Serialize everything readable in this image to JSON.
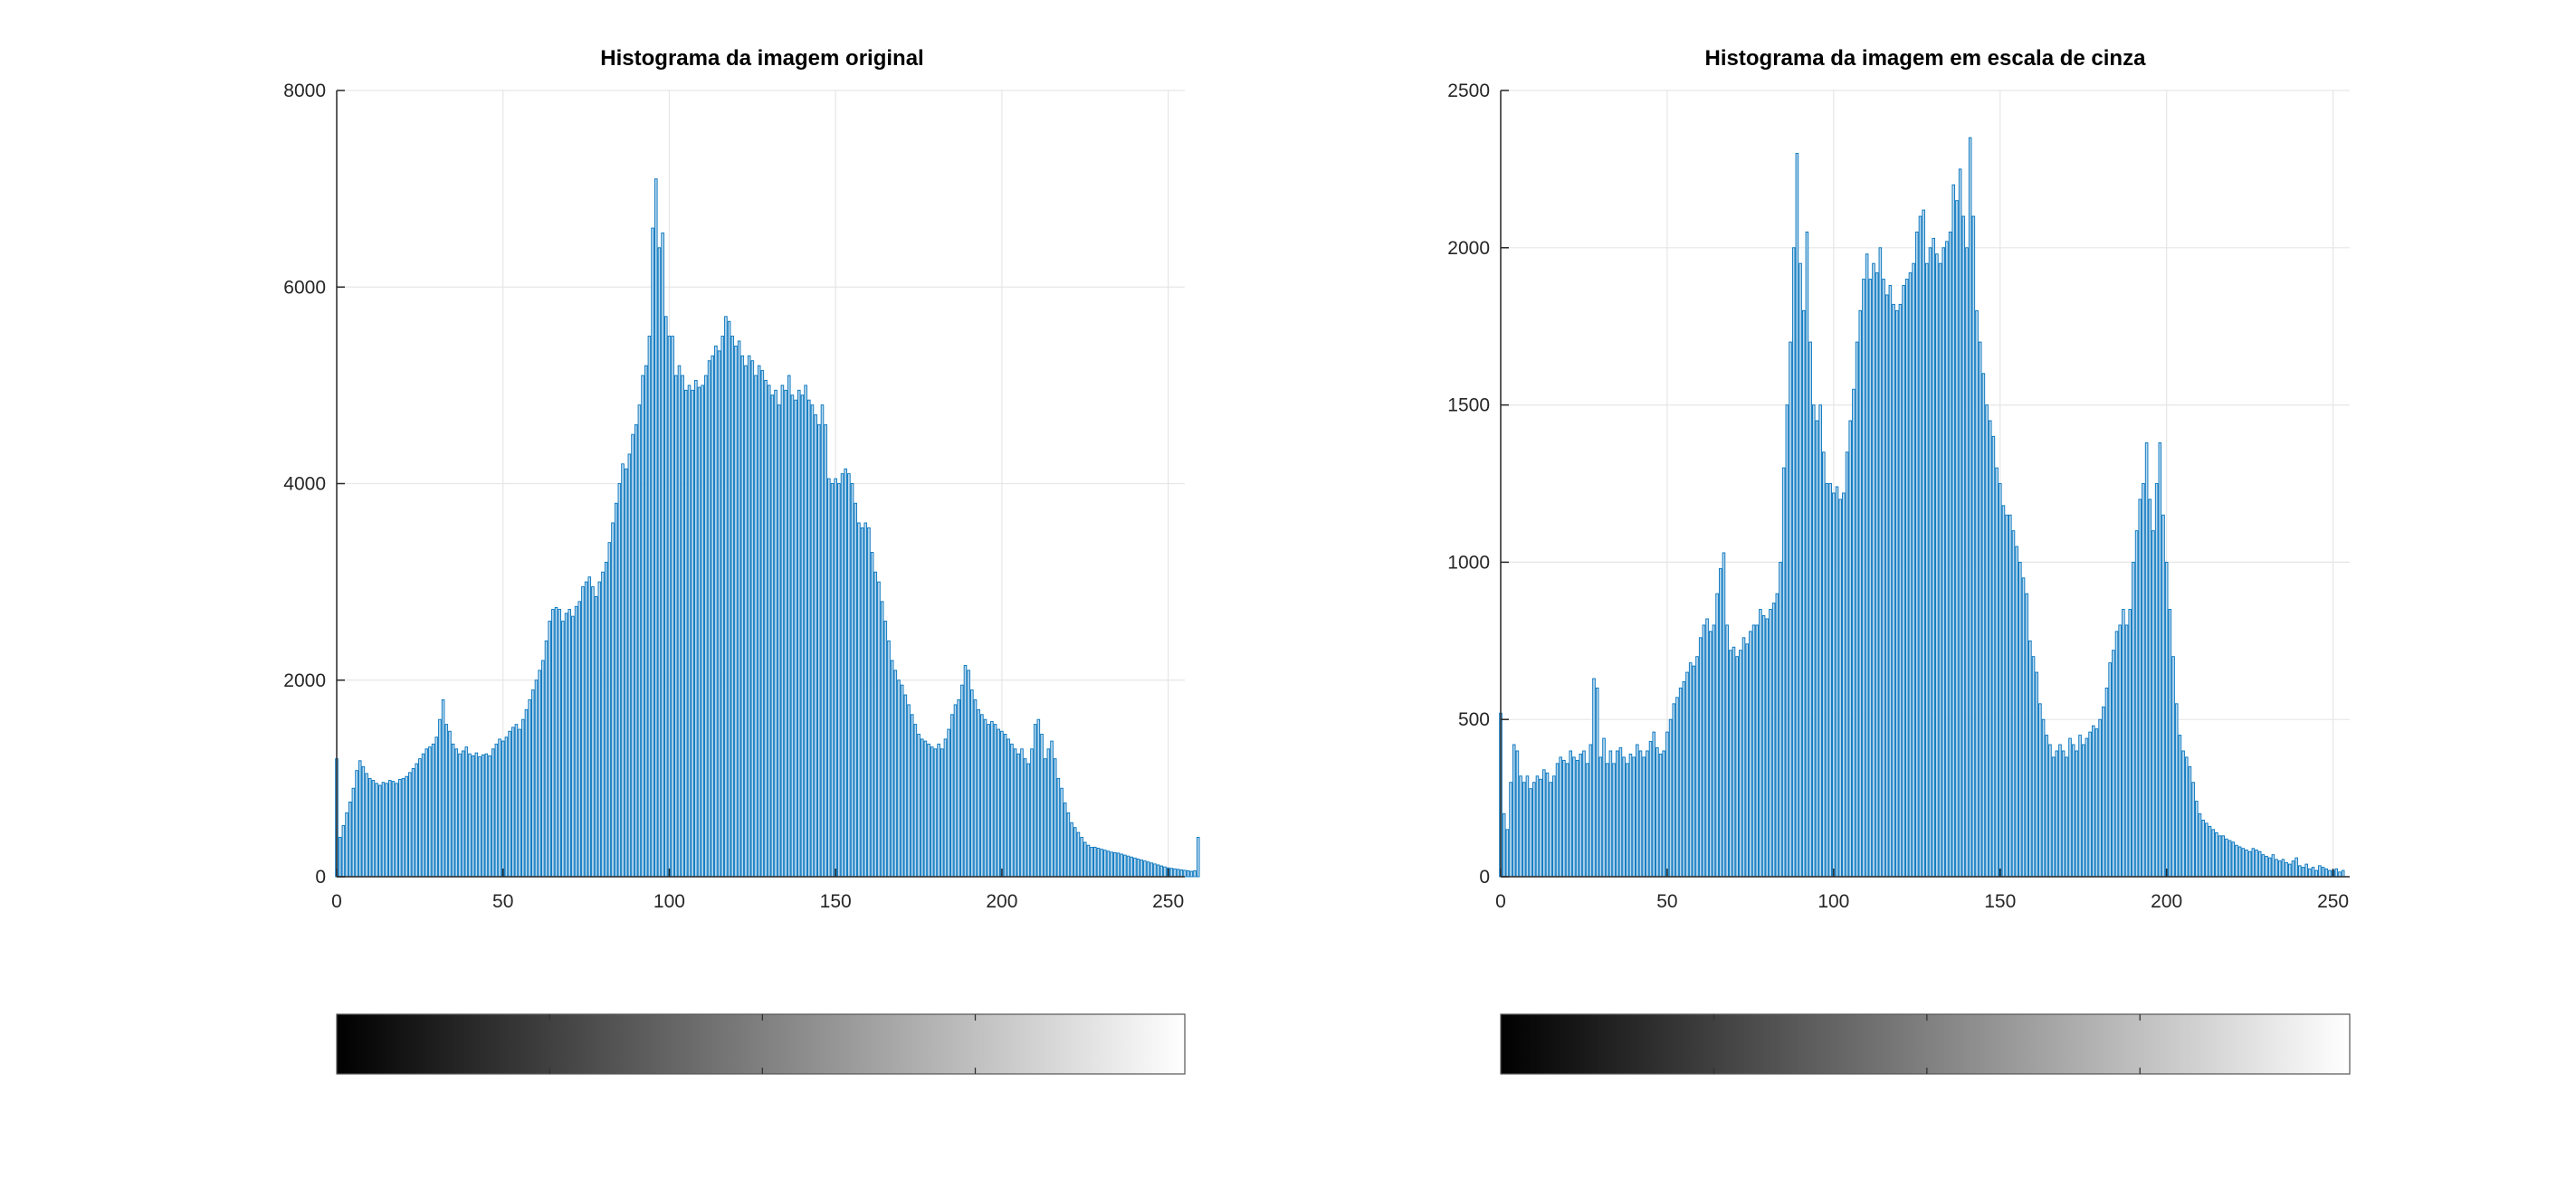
{
  "colors": {
    "bar_fill": "#bcd9ee",
    "bar_edge": "#0072bd",
    "grid": "#e6e6e6",
    "axis": "#262626",
    "background": "#ffffff"
  },
  "chart_data": [
    {
      "type": "bar",
      "title": "Histograma da imagem original",
      "xlabel": "",
      "ylabel": "",
      "xlim": [
        0,
        255
      ],
      "ylim": [
        0,
        8000
      ],
      "grid": true,
      "legend": "none",
      "x_ticks": [
        0,
        50,
        100,
        150,
        200,
        250
      ],
      "y_ticks": [
        0,
        2000,
        4000,
        6000,
        8000
      ],
      "x_tick_labels": [
        "0",
        "50",
        "100",
        "150",
        "200",
        "250"
      ],
      "y_tick_labels": [
        "0",
        "2000",
        "4000",
        "6000",
        "8000"
      ],
      "colorbar": {
        "colormap": "gray",
        "range": [
          0,
          255
        ],
        "ticks": [
          64,
          128,
          192
        ]
      },
      "x_start": 0,
      "values": [
        1200,
        400,
        520,
        650,
        760,
        900,
        1080,
        1180,
        1120,
        1050,
        1000,
        980,
        950,
        930,
        960,
        950,
        980,
        970,
        950,
        990,
        1000,
        1020,
        1060,
        1100,
        1150,
        1200,
        1250,
        1300,
        1320,
        1350,
        1420,
        1600,
        1800,
        1550,
        1480,
        1350,
        1300,
        1250,
        1280,
        1320,
        1250,
        1230,
        1260,
        1220,
        1240,
        1250,
        1230,
        1300,
        1350,
        1400,
        1380,
        1420,
        1480,
        1520,
        1550,
        1500,
        1600,
        1700,
        1800,
        1900,
        2000,
        2100,
        2200,
        2400,
        2600,
        2720,
        2740,
        2720,
        2600,
        2680,
        2720,
        2650,
        2750,
        2800,
        2950,
        3000,
        3050,
        2950,
        2850,
        3000,
        3100,
        3200,
        3400,
        3600,
        3800,
        4000,
        4200,
        4150,
        4300,
        4500,
        4600,
        4800,
        5100,
        5200,
        5500,
        6600,
        7100,
        6400,
        6550,
        5700,
        5500,
        5500,
        5100,
        5200,
        5100,
        4950,
        5000,
        4950,
        5050,
        4980,
        5000,
        5100,
        5250,
        5300,
        5400,
        5350,
        5500,
        5700,
        5650,
        5500,
        5400,
        5450,
        5300,
        5200,
        5300,
        5250,
        5100,
        5200,
        5150,
        5050,
        5000,
        4900,
        4950,
        4800,
        5000,
        4950,
        5100,
        4900,
        4850,
        4950,
        4900,
        5000,
        4850,
        4800,
        4700,
        4600,
        4800,
        4600,
        4050,
        4000,
        4050,
        4000,
        4100,
        4150,
        4100,
        4000,
        3800,
        3600,
        3550,
        3600,
        3550,
        3300,
        3100,
        3000,
        2800,
        2600,
        2400,
        2200,
        2100,
        2000,
        1950,
        1850,
        1750,
        1650,
        1550,
        1450,
        1400,
        1380,
        1350,
        1320,
        1300,
        1350,
        1300,
        1400,
        1500,
        1650,
        1750,
        1800,
        1950,
        2150,
        2100,
        1900,
        1800,
        1700,
        1650,
        1600,
        1550,
        1580,
        1550,
        1500,
        1480,
        1450,
        1400,
        1350,
        1300,
        1250,
        1300,
        1200,
        1150,
        1300,
        1550,
        1600,
        1450,
        1200,
        1300,
        1380,
        1200,
        1000,
        900,
        750,
        650,
        550,
        500,
        450,
        400,
        350,
        320,
        300,
        300,
        290,
        280,
        270,
        260,
        250,
        245,
        240,
        230,
        220,
        210,
        200,
        190,
        180,
        170,
        160,
        150,
        140,
        130,
        120,
        110,
        100,
        90,
        85,
        80,
        75,
        70,
        65,
        60,
        55,
        60,
        400
      ]
    },
    {
      "type": "bar",
      "title": "Histograma da imagem em escala de cinza",
      "xlabel": "",
      "ylabel": "",
      "xlim": [
        0,
        255
      ],
      "ylim": [
        0,
        2500
      ],
      "grid": true,
      "legend": "none",
      "x_ticks": [
        0,
        50,
        100,
        150,
        200,
        250
      ],
      "y_ticks": [
        0,
        500,
        1000,
        1500,
        2000,
        2500
      ],
      "x_tick_labels": [
        "0",
        "50",
        "100",
        "150",
        "200",
        "250"
      ],
      "y_tick_labels": [
        "0",
        "500",
        "1000",
        "1500",
        "2000",
        "2500"
      ],
      "colorbar": {
        "colormap": "gray",
        "range": [
          0,
          255
        ],
        "ticks": [
          64,
          128,
          192
        ]
      },
      "x_start": 0,
      "values": [
        520,
        200,
        150,
        300,
        420,
        400,
        320,
        300,
        320,
        280,
        300,
        320,
        310,
        340,
        330,
        300,
        320,
        360,
        380,
        370,
        360,
        400,
        380,
        370,
        390,
        400,
        360,
        420,
        630,
        600,
        380,
        440,
        360,
        400,
        360,
        400,
        410,
        380,
        360,
        390,
        380,
        420,
        400,
        380,
        400,
        430,
        460,
        410,
        390,
        400,
        460,
        500,
        550,
        570,
        600,
        620,
        650,
        680,
        670,
        700,
        760,
        800,
        820,
        780,
        800,
        900,
        980,
        1030,
        800,
        720,
        730,
        700,
        720,
        760,
        740,
        780,
        800,
        800,
        850,
        830,
        820,
        850,
        870,
        900,
        1000,
        1300,
        1500,
        1700,
        2000,
        2300,
        1950,
        1800,
        2050,
        1700,
        1500,
        1450,
        1500,
        1350,
        1250,
        1250,
        1220,
        1240,
        1200,
        1220,
        1350,
        1450,
        1550,
        1700,
        1800,
        1900,
        1980,
        1900,
        1950,
        1920,
        2000,
        1900,
        1850,
        1880,
        1820,
        1800,
        1820,
        1880,
        1900,
        1920,
        1950,
        2050,
        2100,
        2120,
        1950,
        2000,
        2030,
        1980,
        1950,
        2000,
        2020,
        2050,
        2200,
        2150,
        2250,
        2100,
        2000,
        2350,
        2100,
        1800,
        1700,
        1600,
        1500,
        1450,
        1400,
        1300,
        1250,
        1180,
        1150,
        1150,
        1100,
        1050,
        1000,
        950,
        900,
        750,
        700,
        650,
        550,
        500,
        450,
        420,
        380,
        400,
        420,
        400,
        380,
        440,
        420,
        400,
        450,
        420,
        440,
        460,
        480,
        470,
        500,
        540,
        600,
        680,
        720,
        780,
        800,
        850,
        800,
        850,
        1000,
        1100,
        1200,
        1250,
        1380,
        1200,
        1100,
        1250,
        1380,
        1150,
        1000,
        850,
        700,
        550,
        450,
        400,
        380,
        350,
        300,
        240,
        200,
        180,
        170,
        160,
        150,
        140,
        130,
        130,
        120,
        115,
        110,
        100,
        95,
        90,
        85,
        80,
        90,
        85,
        80,
        70,
        65,
        60,
        70,
        55,
        50,
        55,
        45,
        40,
        50,
        60,
        35,
        30,
        40,
        25,
        30,
        20,
        35,
        30,
        25,
        20,
        20,
        25,
        15,
        20
      ]
    }
  ]
}
